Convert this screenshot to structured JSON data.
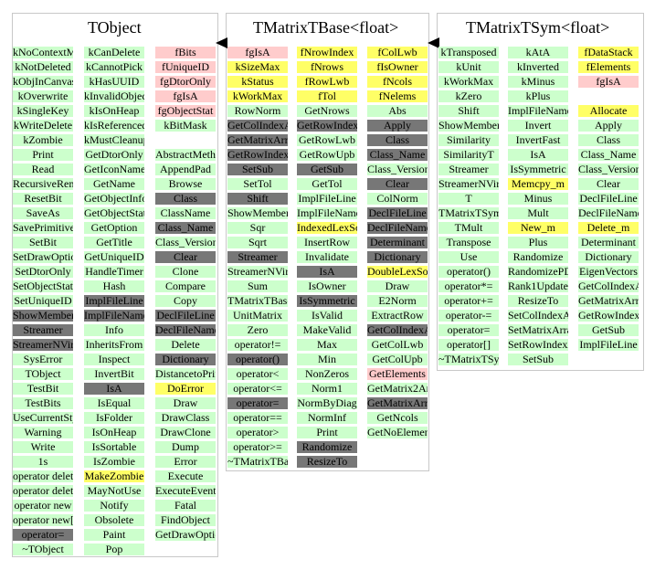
{
  "panels": [
    {
      "title": "TObject"
    },
    {
      "title": "TMatrixTBase<float>"
    },
    {
      "title": "TMatrixTSym<float>"
    }
  ],
  "legend_colors": {
    "public": "#ccffcc",
    "protected": "#ffff66",
    "private": "#ffcccc",
    "inherited": "#777777"
  },
  "columns": [
    {
      "items": [
        {
          "t": "kNoContextMenu",
          "c": "g"
        },
        {
          "t": "kNotDeleted",
          "c": "g"
        },
        {
          "t": "kObjInCanvas",
          "c": "g"
        },
        {
          "t": "kOverwrite",
          "c": "g"
        },
        {
          "t": "kSingleKey",
          "c": "g"
        },
        {
          "t": "kWriteDelete",
          "c": "g"
        },
        {
          "t": "kZombie",
          "c": "g"
        },
        {
          "t": "Print",
          "c": "g"
        },
        {
          "t": "Read",
          "c": "g"
        },
        {
          "t": "RecursiveRemove",
          "c": "g"
        },
        {
          "t": "ResetBit",
          "c": "g"
        },
        {
          "t": "SaveAs",
          "c": "g"
        },
        {
          "t": "SavePrimitive",
          "c": "g"
        },
        {
          "t": "SetBit",
          "c": "g"
        },
        {
          "t": "SetDrawOption",
          "c": "g"
        },
        {
          "t": "SetDtorOnly",
          "c": "g"
        },
        {
          "t": "SetObjectStat",
          "c": "g"
        },
        {
          "t": "SetUniqueID",
          "c": "g"
        },
        {
          "t": "ShowMembers",
          "c": "d"
        },
        {
          "t": "Streamer",
          "c": "d"
        },
        {
          "t": "StreamerNVirtual",
          "c": "d"
        },
        {
          "t": "SysError",
          "c": "g"
        },
        {
          "t": "TObject",
          "c": "g"
        },
        {
          "t": "TestBit",
          "c": "g"
        },
        {
          "t": "TestBits",
          "c": "g"
        },
        {
          "t": "UseCurrentStyle",
          "c": "g"
        },
        {
          "t": "Warning",
          "c": "g"
        },
        {
          "t": "Write",
          "c": "g"
        },
        {
          "t": "1s",
          "c": "g"
        },
        {
          "t": "operator delete",
          "c": "g"
        },
        {
          "t": "operator delete[]",
          "c": "g"
        },
        {
          "t": "operator new",
          "c": "g"
        },
        {
          "t": "operator new[]",
          "c": "g"
        },
        {
          "t": "operator=",
          "c": "d"
        },
        {
          "t": "~TObject",
          "c": "g"
        }
      ]
    },
    {
      "items": [
        {
          "t": "kCanDelete",
          "c": "g"
        },
        {
          "t": "kCannotPick",
          "c": "g"
        },
        {
          "t": "kHasUUID",
          "c": "g"
        },
        {
          "t": "kInvalidObject",
          "c": "g"
        },
        {
          "t": "kIsOnHeap",
          "c": "g"
        },
        {
          "t": "kIsReferenced",
          "c": "g"
        },
        {
          "t": "kMustCleanup",
          "c": "g"
        },
        {
          "t": "GetDtorOnly",
          "c": "g"
        },
        {
          "t": "GetIconName",
          "c": "g"
        },
        {
          "t": "GetName",
          "c": "g"
        },
        {
          "t": "GetObjectInfo",
          "c": "g"
        },
        {
          "t": "GetObjectStat",
          "c": "g"
        },
        {
          "t": "GetOption",
          "c": "g"
        },
        {
          "t": "GetTitle",
          "c": "g"
        },
        {
          "t": "GetUniqueID",
          "c": "g"
        },
        {
          "t": "HandleTimer",
          "c": "g"
        },
        {
          "t": "Hash",
          "c": "g"
        },
        {
          "t": "ImplFileLine",
          "c": "d"
        },
        {
          "t": "ImplFileName",
          "c": "d"
        },
        {
          "t": "Info",
          "c": "g"
        },
        {
          "t": "InheritsFrom",
          "c": "g"
        },
        {
          "t": "Inspect",
          "c": "g"
        },
        {
          "t": "InvertBit",
          "c": "g"
        },
        {
          "t": "IsA",
          "c": "d"
        },
        {
          "t": "IsEqual",
          "c": "g"
        },
        {
          "t": "IsFolder",
          "c": "g"
        },
        {
          "t": "IsOnHeap",
          "c": "g"
        },
        {
          "t": "IsSortable",
          "c": "g"
        },
        {
          "t": "IsZombie",
          "c": "g"
        },
        {
          "t": "MakeZombie",
          "c": "y"
        },
        {
          "t": "MayNotUse",
          "c": "g"
        },
        {
          "t": "Notify",
          "c": "g"
        },
        {
          "t": "Obsolete",
          "c": "g"
        },
        {
          "t": "Paint",
          "c": "g"
        },
        {
          "t": "Pop",
          "c": "g"
        }
      ]
    },
    {
      "items": [
        {
          "t": "fBits",
          "c": "p"
        },
        {
          "t": "fUniqueID",
          "c": "p"
        },
        {
          "t": "fgDtorOnly",
          "c": "p"
        },
        {
          "t": "fgIsA",
          "c": "p"
        },
        {
          "t": "fgObjectStat",
          "c": "p"
        },
        {
          "t": "kBitMask",
          "c": "g"
        },
        {
          "t": "",
          "c": "gap"
        },
        {
          "t": "AbstractMethod",
          "c": "g"
        },
        {
          "t": "AppendPad",
          "c": "g"
        },
        {
          "t": "Browse",
          "c": "g"
        },
        {
          "t": "Class",
          "c": "d"
        },
        {
          "t": "ClassName",
          "c": "g"
        },
        {
          "t": "Class_Name",
          "c": "d"
        },
        {
          "t": "Class_Version",
          "c": "g"
        },
        {
          "t": "Clear",
          "c": "d"
        },
        {
          "t": "Clone",
          "c": "g"
        },
        {
          "t": "Compare",
          "c": "g"
        },
        {
          "t": "Copy",
          "c": "g"
        },
        {
          "t": "DeclFileLine",
          "c": "d"
        },
        {
          "t": "DeclFileName",
          "c": "d"
        },
        {
          "t": "Delete",
          "c": "g"
        },
        {
          "t": "Dictionary",
          "c": "d"
        },
        {
          "t": "DistancetoPrimitive",
          "c": "g"
        },
        {
          "t": "DoError",
          "c": "y"
        },
        {
          "t": "Draw",
          "c": "g"
        },
        {
          "t": "DrawClass",
          "c": "g"
        },
        {
          "t": "DrawClone",
          "c": "g"
        },
        {
          "t": "Dump",
          "c": "g"
        },
        {
          "t": "Error",
          "c": "g"
        },
        {
          "t": "Execute",
          "c": "g"
        },
        {
          "t": "ExecuteEvent",
          "c": "g"
        },
        {
          "t": "Fatal",
          "c": "g"
        },
        {
          "t": "FindObject",
          "c": "g"
        },
        {
          "t": "GetDrawOption",
          "c": "g"
        }
      ]
    },
    {
      "items": [
        {
          "t": "fgIsA",
          "c": "p"
        },
        {
          "t": "kSizeMax",
          "c": "y"
        },
        {
          "t": "kStatus",
          "c": "y"
        },
        {
          "t": "kWorkMax",
          "c": "y"
        },
        {
          "t": "RowNorm",
          "c": "g"
        },
        {
          "t": "GetColIndexArray",
          "c": "d"
        },
        {
          "t": "GetMatrixArray",
          "c": "d"
        },
        {
          "t": "GetRowIndexArray",
          "c": "d"
        },
        {
          "t": "SetSub",
          "c": "d"
        },
        {
          "t": "SetTol",
          "c": "g"
        },
        {
          "t": "Shift",
          "c": "d"
        },
        {
          "t": "ShowMembers",
          "c": "g"
        },
        {
          "t": "Sqr",
          "c": "g"
        },
        {
          "t": "Sqrt",
          "c": "g"
        },
        {
          "t": "Streamer",
          "c": "d"
        },
        {
          "t": "StreamerNVirtual",
          "c": "g"
        },
        {
          "t": "Sum",
          "c": "g"
        },
        {
          "t": "TMatrixTBase<float>",
          "c": "g"
        },
        {
          "t": "UnitMatrix",
          "c": "g"
        },
        {
          "t": "Zero",
          "c": "g"
        },
        {
          "t": "operator!=",
          "c": "g"
        },
        {
          "t": "operator()",
          "c": "d"
        },
        {
          "t": "operator<",
          "c": "g"
        },
        {
          "t": "operator<=",
          "c": "g"
        },
        {
          "t": "operator=",
          "c": "d"
        },
        {
          "t": "operator==",
          "c": "g"
        },
        {
          "t": "operator>",
          "c": "g"
        },
        {
          "t": "operator>=",
          "c": "g"
        },
        {
          "t": "~TMatrixTBase<float>",
          "c": "g"
        }
      ]
    },
    {
      "items": [
        {
          "t": "fNrowIndex",
          "c": "y"
        },
        {
          "t": "fNrows",
          "c": "y"
        },
        {
          "t": "fRowLwb",
          "c": "y"
        },
        {
          "t": "fTol",
          "c": "y"
        },
        {
          "t": "GetNrows",
          "c": "g"
        },
        {
          "t": "GetRowIndexArray",
          "c": "d"
        },
        {
          "t": "GetRowLwb",
          "c": "g"
        },
        {
          "t": "GetRowUpb",
          "c": "g"
        },
        {
          "t": "GetSub",
          "c": "d"
        },
        {
          "t": "GetTol",
          "c": "g"
        },
        {
          "t": "ImplFileLine",
          "c": "g"
        },
        {
          "t": "ImplFileName",
          "c": "g"
        },
        {
          "t": "IndexedLexSort",
          "c": "y"
        },
        {
          "t": "InsertRow",
          "c": "g"
        },
        {
          "t": "Invalidate",
          "c": "g"
        },
        {
          "t": "IsA",
          "c": "d"
        },
        {
          "t": "IsOwner",
          "c": "g"
        },
        {
          "t": "IsSymmetric",
          "c": "d"
        },
        {
          "t": "IsValid",
          "c": "g"
        },
        {
          "t": "MakeValid",
          "c": "g"
        },
        {
          "t": "Max",
          "c": "g"
        },
        {
          "t": "Min",
          "c": "g"
        },
        {
          "t": "NonZeros",
          "c": "g"
        },
        {
          "t": "Norm1",
          "c": "g"
        },
        {
          "t": "NormByDiag",
          "c": "g"
        },
        {
          "t": "NormInf",
          "c": "g"
        },
        {
          "t": "Print",
          "c": "g"
        },
        {
          "t": "Randomize",
          "c": "d"
        },
        {
          "t": "ResizeTo",
          "c": "d"
        }
      ]
    },
    {
      "items": [
        {
          "t": "fColLwb",
          "c": "y"
        },
        {
          "t": "fIsOwner",
          "c": "y"
        },
        {
          "t": "fNcols",
          "c": "y"
        },
        {
          "t": "fNelems",
          "c": "y"
        },
        {
          "t": "Abs",
          "c": "g"
        },
        {
          "t": "Apply",
          "c": "d"
        },
        {
          "t": "Class",
          "c": "d"
        },
        {
          "t": "Class_Name",
          "c": "d"
        },
        {
          "t": "Class_Version",
          "c": "g"
        },
        {
          "t": "Clear",
          "c": "d"
        },
        {
          "t": "ColNorm",
          "c": "g"
        },
        {
          "t": "DeclFileLine",
          "c": "d"
        },
        {
          "t": "DeclFileName",
          "c": "d"
        },
        {
          "t": "Determinant",
          "c": "d"
        },
        {
          "t": "Dictionary",
          "c": "d"
        },
        {
          "t": "DoubleLexSort",
          "c": "y"
        },
        {
          "t": "Draw",
          "c": "g"
        },
        {
          "t": "E2Norm",
          "c": "g"
        },
        {
          "t": "ExtractRow",
          "c": "g"
        },
        {
          "t": "GetColIndexArray",
          "c": "d"
        },
        {
          "t": "GetColLwb",
          "c": "g"
        },
        {
          "t": "GetColUpb",
          "c": "g"
        },
        {
          "t": "GetElements",
          "c": "p"
        },
        {
          "t": "GetMatrix2Array",
          "c": "g"
        },
        {
          "t": "GetMatrixArray",
          "c": "d"
        },
        {
          "t": "GetNcols",
          "c": "g"
        },
        {
          "t": "GetNoElements",
          "c": "g"
        }
      ]
    },
    {
      "items": [
        {
          "t": "kTransposed",
          "c": "g"
        },
        {
          "t": "kUnit",
          "c": "g"
        },
        {
          "t": "kWorkMax",
          "c": "g"
        },
        {
          "t": "kZero",
          "c": "g"
        },
        {
          "t": "Shift",
          "c": "g"
        },
        {
          "t": "ShowMembers",
          "c": "g"
        },
        {
          "t": "Similarity",
          "c": "g"
        },
        {
          "t": "SimilarityT",
          "c": "g"
        },
        {
          "t": "Streamer",
          "c": "g"
        },
        {
          "t": "StreamerNVirtual",
          "c": "g"
        },
        {
          "t": "T",
          "c": "g"
        },
        {
          "t": "TMatrixTSym<float>",
          "c": "g"
        },
        {
          "t": "TMult",
          "c": "g"
        },
        {
          "t": "Transpose",
          "c": "g"
        },
        {
          "t": "Use",
          "c": "g"
        },
        {
          "t": "operator()",
          "c": "g"
        },
        {
          "t": "operator*=",
          "c": "g"
        },
        {
          "t": "operator+=",
          "c": "g"
        },
        {
          "t": "operator-=",
          "c": "g"
        },
        {
          "t": "operator=",
          "c": "g"
        },
        {
          "t": "operator[]",
          "c": "g"
        },
        {
          "t": "~TMatrixTSym<float>",
          "c": "g"
        }
      ]
    },
    {
      "items": [
        {
          "t": "kAtA",
          "c": "g"
        },
        {
          "t": "kInverted",
          "c": "g"
        },
        {
          "t": "kMinus",
          "c": "g"
        },
        {
          "t": "kPlus",
          "c": "g"
        },
        {
          "t": "ImplFileName",
          "c": "g"
        },
        {
          "t": "Invert",
          "c": "g"
        },
        {
          "t": "InvertFast",
          "c": "g"
        },
        {
          "t": "IsA",
          "c": "g"
        },
        {
          "t": "IsSymmetric",
          "c": "g"
        },
        {
          "t": "Memcpy_m",
          "c": "y"
        },
        {
          "t": "Minus",
          "c": "g"
        },
        {
          "t": "Mult",
          "c": "g"
        },
        {
          "t": "New_m",
          "c": "y"
        },
        {
          "t": "Plus",
          "c": "g"
        },
        {
          "t": "Randomize",
          "c": "g"
        },
        {
          "t": "RandomizePD",
          "c": "g"
        },
        {
          "t": "Rank1Update",
          "c": "g"
        },
        {
          "t": "ResizeTo",
          "c": "g"
        },
        {
          "t": "SetColIndexArray",
          "c": "g"
        },
        {
          "t": "SetMatrixArray",
          "c": "g"
        },
        {
          "t": "SetRowIndexArray",
          "c": "g"
        },
        {
          "t": "SetSub",
          "c": "g"
        }
      ]
    },
    {
      "items": [
        {
          "t": "fDataStack",
          "c": "y"
        },
        {
          "t": "fElements",
          "c": "y"
        },
        {
          "t": "fgIsA",
          "c": "p"
        },
        {
          "t": "",
          "c": "gap"
        },
        {
          "t": "Allocate",
          "c": "y"
        },
        {
          "t": "Apply",
          "c": "g"
        },
        {
          "t": "Class",
          "c": "g"
        },
        {
          "t": "Class_Name",
          "c": "g"
        },
        {
          "t": "Class_Version",
          "c": "g"
        },
        {
          "t": "Clear",
          "c": "g"
        },
        {
          "t": "DeclFileLine",
          "c": "g"
        },
        {
          "t": "DeclFileName",
          "c": "g"
        },
        {
          "t": "Delete_m",
          "c": "y"
        },
        {
          "t": "Determinant",
          "c": "g"
        },
        {
          "t": "Dictionary",
          "c": "g"
        },
        {
          "t": "EigenVectors",
          "c": "g"
        },
        {
          "t": "GetColIndexArray",
          "c": "g"
        },
        {
          "t": "GetMatrixArray",
          "c": "g"
        },
        {
          "t": "GetRowIndexArray",
          "c": "g"
        },
        {
          "t": "GetSub",
          "c": "g"
        },
        {
          "t": "ImplFileLine",
          "c": "g"
        }
      ]
    }
  ]
}
